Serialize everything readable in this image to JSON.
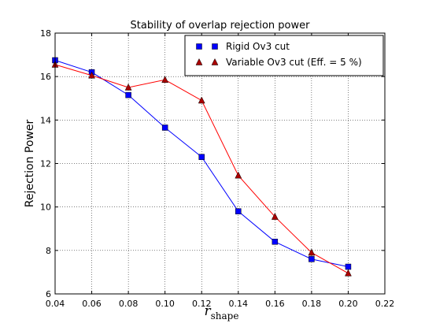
{
  "chart_data": {
    "type": "line",
    "title": "Stability of overlap rejection power",
    "xlabel": "r",
    "xlabel_subscript": "shape",
    "ylabel": "Rejection Power",
    "xlim": [
      0.04,
      0.22
    ],
    "ylim": [
      6,
      18
    ],
    "xticks": [
      "0.04",
      "0.06",
      "0.08",
      "0.10",
      "0.12",
      "0.14",
      "0.16",
      "0.18",
      "0.20",
      "0.22"
    ],
    "xtick_values": [
      0.04,
      0.06,
      0.08,
      0.1,
      0.12,
      0.14,
      0.16,
      0.18,
      0.2,
      0.22
    ],
    "yticks": [
      "6",
      "8",
      "10",
      "12",
      "14",
      "16",
      "18"
    ],
    "ytick_values": [
      6,
      8,
      10,
      12,
      14,
      16,
      18
    ],
    "grid": true,
    "legend_position": "top-right",
    "x": [
      0.04,
      0.06,
      0.08,
      0.1,
      0.12,
      0.14,
      0.16,
      0.18,
      0.2
    ],
    "series": [
      {
        "name": "Rigid Ov3 cut",
        "marker": "square",
        "color": "#0000ff",
        "values": [
          16.75,
          16.2,
          15.15,
          13.65,
          12.3,
          9.8,
          8.4,
          7.6,
          7.25
        ]
      },
      {
        "name": "Variable Ov3 cut (Eff. = 5 %)",
        "marker": "triangle",
        "color": "#ff0000",
        "marker_color": "#aa0000",
        "values": [
          16.55,
          16.05,
          15.5,
          15.85,
          14.9,
          11.45,
          9.55,
          7.9,
          6.95
        ]
      }
    ]
  }
}
